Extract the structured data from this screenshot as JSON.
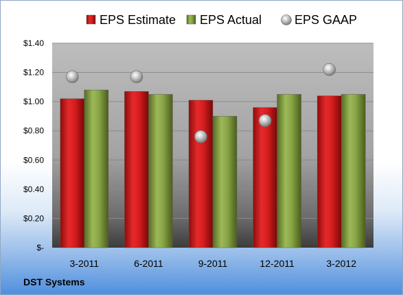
{
  "chart_data": {
    "type": "bar",
    "categories": [
      "3-2011",
      "6-2011",
      "9-2011",
      "12-2011",
      "3-2012"
    ],
    "series": [
      {
        "name": "EPS Estimate",
        "kind": "bar",
        "color": "#cc1f1f",
        "values": [
          1.02,
          1.07,
          1.01,
          0.96,
          1.04
        ]
      },
      {
        "name": "EPS Actual",
        "kind": "bar",
        "color": "#86a341",
        "values": [
          1.08,
          1.05,
          0.9,
          1.05,
          1.05
        ]
      },
      {
        "name": "EPS GAAP",
        "kind": "marker",
        "color": "#bfbfbf",
        "values": [
          1.17,
          1.17,
          0.76,
          0.87,
          1.22
        ]
      }
    ],
    "yticks": [
      "$-",
      "$0.20",
      "$0.40",
      "$0.60",
      "$0.80",
      "$1.00",
      "$1.20",
      "$1.40"
    ],
    "ylim": [
      0,
      1.4
    ],
    "ystep": 0.2,
    "grid": true,
    "legend": "top-center",
    "title": "",
    "xlabel": "",
    "ylabel": ""
  },
  "footer": {
    "company": "DST Systems"
  }
}
